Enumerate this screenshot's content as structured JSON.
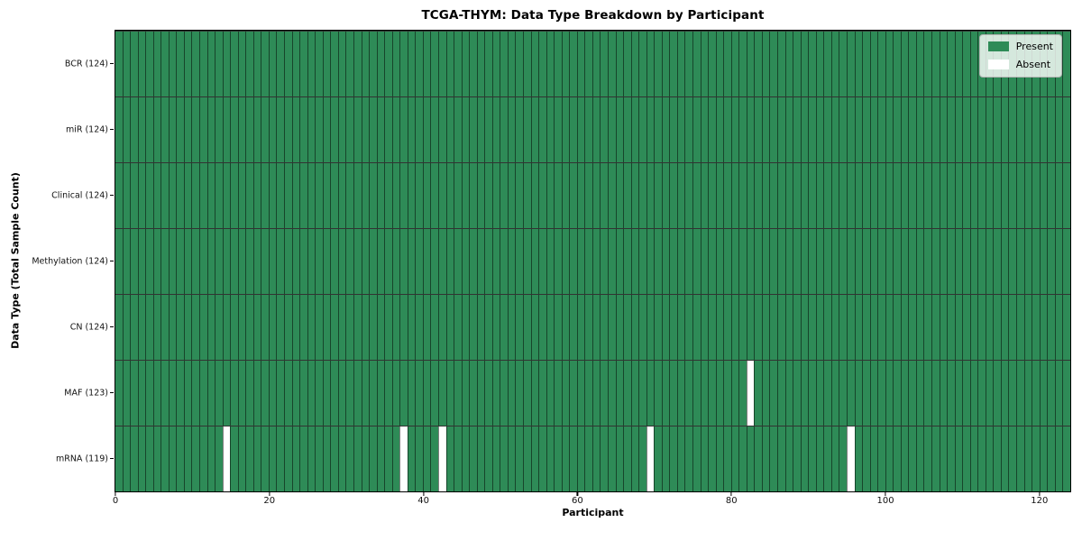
{
  "chart_data": {
    "type": "heatmap",
    "title": "TCGA-THYM: Data Type Breakdown by Participant",
    "xlabel": "Participant",
    "ylabel": "Data Type (Total Sample Count)",
    "n_participants": 124,
    "xlim": [
      0,
      124
    ],
    "x_ticks": [
      0,
      20,
      40,
      60,
      80,
      100,
      120
    ],
    "grid": "per-cell borders, black row separators",
    "legend_position": "upper right",
    "rows": [
      {
        "data_type": "BCR",
        "label": "BCR (124)",
        "present_count": 124,
        "absent_participants": []
      },
      {
        "data_type": "miR",
        "label": "miR (124)",
        "present_count": 124,
        "absent_participants": []
      },
      {
        "data_type": "Clinical",
        "label": "Clinical (124)",
        "present_count": 124,
        "absent_participants": []
      },
      {
        "data_type": "Methylation",
        "label": "Methylation (124)",
        "present_count": 124,
        "absent_participants": []
      },
      {
        "data_type": "CN",
        "label": "CN (124)",
        "present_count": 124,
        "absent_participants": []
      },
      {
        "data_type": "MAF",
        "label": "MAF (123)",
        "present_count": 123,
        "absent_participants": [
          82
        ]
      },
      {
        "data_type": "mRNA",
        "label": "mRNA (119)",
        "present_count": 119,
        "absent_participants": [
          14,
          37,
          42,
          69,
          95
        ]
      }
    ],
    "legend": {
      "entries": [
        {
          "label": "Present",
          "color": "#2e8b57"
        },
        {
          "label": "Absent",
          "color": "#ffffff"
        }
      ]
    },
    "colors": {
      "present": "#2e8b57",
      "absent": "#ffffff",
      "cell_border": "rgba(0,0,0,0.5)",
      "row_separator": "#000000",
      "plot_border": "#000000",
      "background": "#ffffff"
    }
  }
}
